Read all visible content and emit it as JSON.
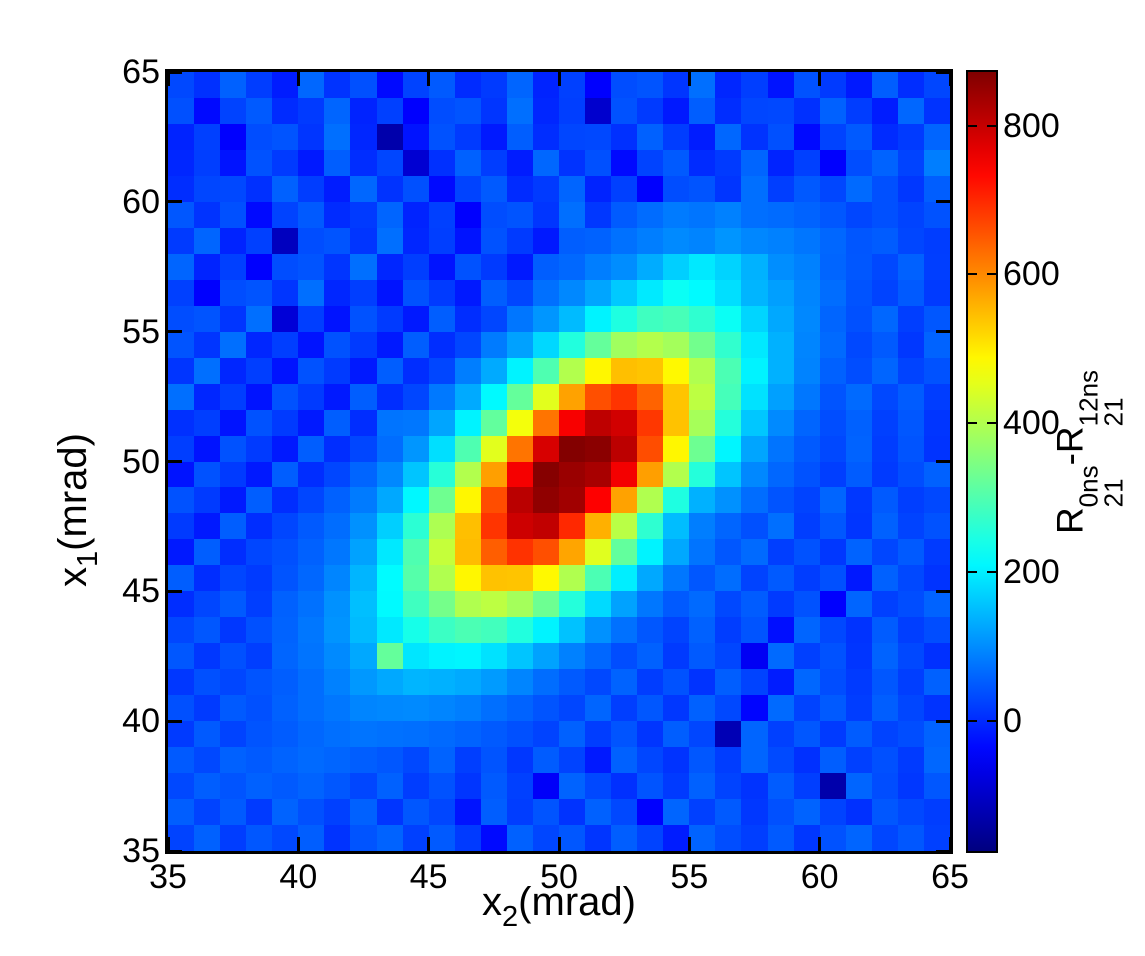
{
  "figure": {
    "background": "#ffffff",
    "x_axis": {
      "label": {
        "base": "x",
        "sub": "2",
        "unit": "(mrad)"
      },
      "ticks": [
        35,
        40,
        45,
        50,
        55,
        60,
        65
      ],
      "range": [
        35,
        65
      ]
    },
    "y_axis": {
      "label": {
        "base": "x",
        "sub": "1",
        "unit": "(mrad)"
      },
      "ticks": [
        35,
        40,
        45,
        50,
        55,
        60,
        65
      ],
      "range": [
        35,
        65
      ]
    },
    "colorbar": {
      "colormap": "jet",
      "ticks": [
        0,
        200,
        400,
        600,
        800
      ],
      "clim": [
        -175,
        872
      ],
      "label": {
        "term1": {
          "base": "R",
          "sup": "0ns",
          "sub": "21"
        },
        "minus": "-",
        "term2": {
          "base": "R",
          "sup": "12ns",
          "sub": "21"
        }
      },
      "label_plain": "R_21^{0ns}-R_21^{12ns}"
    }
  },
  "chart_data": {
    "type": "heatmap",
    "title": "",
    "xlabel": "x_2 (mrad)",
    "ylabel": "x_1 (mrad)",
    "x_range": [
      35,
      65
    ],
    "y_range": [
      35,
      65
    ],
    "bins": 30,
    "colormap": "jet",
    "clim": [
      -175,
      872
    ],
    "x_ticks": [
      35,
      40,
      45,
      50,
      55,
      60,
      65
    ],
    "y_ticks": [
      35,
      40,
      45,
      50,
      55,
      60,
      65
    ],
    "colorbar_ticks": [
      0,
      200,
      400,
      600,
      800
    ],
    "grid_note": "values rows ordered top-to-bottom: x1 bin centers 64.5 down to 35.5; columns left-to-right: x2 bin centers 35.5 up to 64.5; 1 mrad bins",
    "values": [
      [
        30,
        5,
        55,
        18,
        -15,
        62,
        8,
        38,
        -35,
        25,
        48,
        0,
        15,
        60,
        -8,
        22,
        -45,
        35,
        42,
        10,
        70,
        -5,
        20,
        -25,
        40,
        15,
        -18,
        52,
        2,
        28
      ],
      [
        38,
        -35,
        25,
        48,
        0,
        15,
        60,
        -8,
        22,
        -45,
        35,
        42,
        10,
        70,
        -5,
        20,
        -95,
        40,
        15,
        -18,
        52,
        2,
        28,
        30,
        5,
        55,
        18,
        -15,
        62,
        8
      ],
      [
        -8,
        22,
        -45,
        35,
        42,
        10,
        70,
        -5,
        -130,
        -25,
        40,
        15,
        -18,
        52,
        2,
        28,
        30,
        5,
        55,
        18,
        -15,
        62,
        8,
        38,
        -35,
        25,
        48,
        0,
        15,
        60
      ],
      [
        -5,
        20,
        -25,
        40,
        15,
        -18,
        52,
        2,
        28,
        -90,
        5,
        55,
        18,
        -15,
        62,
        8,
        38,
        -35,
        25,
        48,
        0,
        15,
        60,
        -8,
        22,
        -45,
        35,
        57,
        25,
        85
      ],
      [
        2,
        28,
        30,
        5,
        55,
        18,
        -15,
        62,
        8,
        38,
        -35,
        25,
        48,
        0,
        15,
        60,
        -8,
        22,
        -45,
        35,
        42,
        10,
        70,
        20,
        47,
        28,
        65,
        38,
        12,
        52
      ],
      [
        45,
        8,
        38,
        -35,
        25,
        48,
        0,
        15,
        60,
        -8,
        22,
        -45,
        35,
        42,
        10,
        70,
        12,
        49,
        67,
        82,
        76,
        88,
        70,
        66,
        58,
        45,
        28,
        38,
        25,
        40
      ],
      [
        15,
        60,
        -8,
        22,
        -110,
        35,
        42,
        10,
        70,
        -5,
        20,
        -25,
        40,
        15,
        -18,
        52,
        56,
        72,
        85,
        98,
        91,
        109,
        94,
        88,
        77,
        62,
        44,
        50,
        28,
        18
      ],
      [
        60,
        -8,
        22,
        -45,
        35,
        42,
        10,
        70,
        -5,
        20,
        -25,
        40,
        15,
        -18,
        52,
        63,
        85,
        101,
        132,
        168,
        195,
        172,
        139,
        102,
        88,
        60,
        45,
        30,
        55,
        20
      ],
      [
        22,
        -45,
        35,
        42,
        10,
        70,
        -5,
        20,
        -25,
        40,
        15,
        -18,
        52,
        28,
        71,
        95,
        125,
        162,
        196,
        228,
        214,
        185,
        142,
        119,
        92,
        68,
        41,
        25,
        48,
        15
      ],
      [
        35,
        42,
        10,
        70,
        -85,
        20,
        -25,
        40,
        15,
        -18,
        52,
        2,
        28,
        77,
        110,
        148,
        205,
        248,
        282,
        291,
        266,
        228,
        175,
        128,
        95,
        60,
        38,
        62,
        20,
        45
      ],
      [
        42,
        10,
        70,
        -5,
        20,
        -25,
        40,
        15,
        -18,
        52,
        2,
        28,
        82,
        121,
        178,
        252,
        320,
        382,
        401,
        386,
        335,
        268,
        195,
        138,
        92,
        65,
        30,
        48,
        12,
        58
      ],
      [
        10,
        70,
        -5,
        20,
        -25,
        40,
        15,
        -18,
        52,
        2,
        28,
        85,
        130,
        205,
        298,
        400,
        488,
        545,
        540,
        486,
        398,
        295,
        205,
        138,
        90,
        55,
        35,
        60,
        25,
        40
      ],
      [
        70,
        -5,
        20,
        -25,
        40,
        15,
        -18,
        52,
        2,
        28,
        80,
        130,
        212,
        320,
        450,
        575,
        660,
        688,
        640,
        540,
        412,
        288,
        188,
        120,
        78,
        42,
        65,
        30,
        50,
        18
      ],
      [
        5,
        20,
        -25,
        40,
        15,
        -18,
        52,
        2,
        75,
        78,
        125,
        205,
        318,
        468,
        622,
        748,
        808,
        788,
        685,
        542,
        388,
        255,
        160,
        98,
        60,
        35,
        55,
        22,
        45,
        10
      ],
      [
        20,
        -25,
        40,
        15,
        -18,
        52,
        2,
        28,
        68,
        110,
        185,
        298,
        450,
        622,
        782,
        868,
        860,
        810,
        662,
        488,
        330,
        208,
        125,
        75,
        48,
        30,
        58,
        18,
        42,
        8
      ],
      [
        -25,
        40,
        15,
        -18,
        52,
        2,
        28,
        60,
        95,
        158,
        258,
        400,
        578,
        750,
        865,
        845,
        830,
        752,
        578,
        400,
        255,
        158,
        95,
        62,
        40,
        20,
        50,
        15,
        35,
        55
      ],
      [
        40,
        15,
        -18,
        52,
        2,
        28,
        55,
        82,
        128,
        210,
        332,
        488,
        662,
        812,
        855,
        838,
        742,
        575,
        398,
        248,
        138,
        105,
        68,
        42,
        25,
        60,
        12,
        48,
        20,
        30
      ],
      [
        15,
        -18,
        52,
        2,
        28,
        48,
        68,
        105,
        168,
        262,
        395,
        545,
        688,
        792,
        805,
        700,
        560,
        408,
        265,
        150,
        85,
        60,
        38,
        70,
        20,
        45,
        10,
        55,
        25,
        40
      ],
      [
        -18,
        52,
        2,
        28,
        38,
        55,
        78,
        122,
        195,
        298,
        420,
        548,
        645,
        690,
        660,
        572,
        448,
        318,
        205,
        128,
        75,
        45,
        65,
        20,
        40,
        12,
        58,
        28,
        48,
        15
      ],
      [
        52,
        2,
        28,
        15,
        42,
        62,
        92,
        142,
        215,
        305,
        398,
        488,
        542,
        540,
        486,
        398,
        295,
        200,
        128,
        78,
        45,
        68,
        25,
        48,
        18,
        38,
        -20,
        55,
        30,
        8
      ],
      [
        2,
        28,
        48,
        20,
        55,
        72,
        105,
        152,
        212,
        282,
        338,
        398,
        412,
        386,
        330,
        255,
        180,
        122,
        78,
        48,
        65,
        30,
        50,
        15,
        40,
        -45,
        60,
        22,
        35,
        58
      ],
      [
        28,
        45,
        12,
        38,
        58,
        78,
        108,
        148,
        195,
        240,
        278,
        295,
        285,
        252,
        205,
        155,
        105,
        72,
        45,
        25,
        55,
        18,
        42,
        -30,
        60,
        30,
        8,
        50,
        20,
        35
      ],
      [
        45,
        12,
        38,
        20,
        60,
        75,
        98,
        128,
        320,
        192,
        205,
        208,
        188,
        158,
        122,
        88,
        62,
        35,
        55,
        15,
        48,
        28,
        -55,
        65,
        22,
        40,
        10,
        58,
        30,
        5
      ],
      [
        12,
        38,
        28,
        42,
        52,
        68,
        88,
        112,
        128,
        142,
        138,
        130,
        115,
        92,
        68,
        48,
        30,
        58,
        18,
        40,
        8,
        52,
        25,
        -15,
        62,
        35,
        15,
        45,
        20,
        55
      ],
      [
        38,
        15,
        48,
        38,
        55,
        68,
        78,
        92,
        95,
        98,
        92,
        85,
        70,
        58,
        42,
        28,
        60,
        20,
        45,
        12,
        55,
        30,
        -40,
        65,
        25,
        48,
        18,
        52,
        28,
        8
      ],
      [
        15,
        48,
        25,
        42,
        50,
        62,
        70,
        75,
        72,
        70,
        65,
        58,
        48,
        38,
        25,
        55,
        18,
        42,
        10,
        52,
        28,
        -120,
        60,
        22,
        45,
        15,
        50,
        25,
        35,
        58
      ],
      [
        48,
        30,
        55,
        48,
        58,
        65,
        60,
        52,
        45,
        30,
        58,
        20,
        42,
        12,
        50,
        25,
        -18,
        55,
        28,
        8,
        45,
        18,
        60,
        32,
        5,
        52,
        22,
        38,
        15,
        62
      ],
      [
        30,
        52,
        42,
        55,
        48,
        58,
        45,
        28,
        55,
        18,
        40,
        10,
        48,
        22,
        -50,
        58,
        30,
        5,
        42,
        15,
        55,
        25,
        8,
        50,
        20,
        -130,
        60,
        35,
        12,
        45
      ],
      [
        52,
        25,
        48,
        15,
        58,
        38,
        22,
        55,
        10,
        45,
        28,
        -25,
        52,
        18,
        42,
        8,
        55,
        30,
        -45,
        60,
        22,
        48,
        12,
        38,
        58,
        25,
        5,
        45,
        30,
        18
      ],
      [
        25,
        55,
        18,
        45,
        30,
        52,
        8,
        42,
        58,
        22,
        48,
        15,
        -35,
        55,
        28,
        45,
        10,
        52,
        25,
        -15,
        58,
        35,
        20,
        48,
        12,
        40,
        60,
        28,
        45,
        22
      ]
    ]
  }
}
